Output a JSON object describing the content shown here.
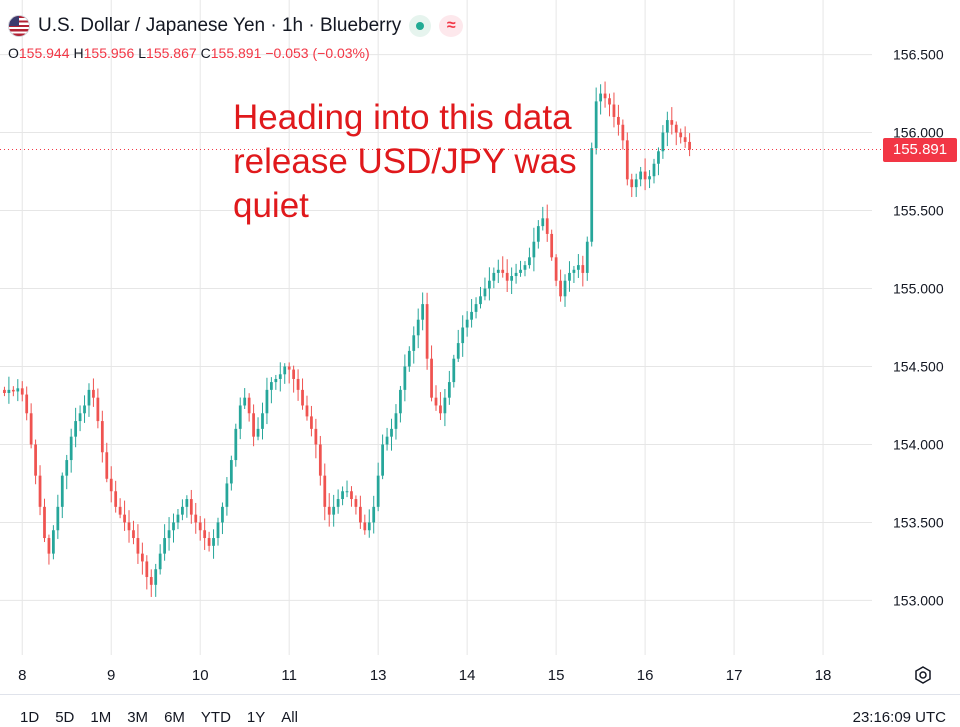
{
  "header": {
    "title": "U.S. Dollar / Japanese Yen · 1h · Blueberry",
    "flag_icon": "us-flag-icon",
    "status_icon": "market-open-dot-icon",
    "wave_icon": "approx-wave-icon"
  },
  "ohlc": {
    "o_label": "O",
    "o_value": "155.944",
    "h_label": "H",
    "h_value": "155.956",
    "l_label": "L",
    "l_value": "155.867",
    "c_label": "C",
    "c_value": "155.891",
    "change": "−0.053 (−0.03%)"
  },
  "annotation": "Heading into this data release USD/JPY was quiet",
  "last_price": "155.891",
  "colors": {
    "up": "#26a69a",
    "down": "#ef5350",
    "annotation": "#e0191c",
    "price_tag": "#f23645",
    "grid": "#e6e6e6"
  },
  "time_ranges": [
    "1D",
    "5D",
    "1M",
    "3M",
    "6M",
    "YTD",
    "1Y",
    "All"
  ],
  "clock": "23:16:09 UTC",
  "settings_icon": "gear-icon",
  "chart_data": {
    "type": "candlestick",
    "title": "U.S. Dollar / Japanese Yen · 1h · Blueberry",
    "xlabel": "",
    "ylabel": "",
    "ylim": [
      152.65,
      156.85
    ],
    "y_ticks": [
      153.0,
      153.5,
      154.0,
      154.5,
      155.0,
      155.5,
      156.0,
      156.5
    ],
    "y_tick_labels": [
      "153.000",
      "153.500",
      "154.000",
      "154.500",
      "155.000",
      "155.500",
      "156.000",
      "156.500"
    ],
    "x_ticks": [
      {
        "label": "8",
        "index": 4
      },
      {
        "label": "9",
        "index": 24
      },
      {
        "label": "10",
        "index": 44
      },
      {
        "label": "11",
        "index": 64
      },
      {
        "label": "13",
        "index": 84
      },
      {
        "label": "14",
        "index": 104
      },
      {
        "label": "15",
        "index": 124
      },
      {
        "label": "16",
        "index": 144
      },
      {
        "label": "17",
        "index": 164
      },
      {
        "label": "18",
        "index": 184
      }
    ],
    "x_range": [
      -1,
      195
    ],
    "last_price": 155.891,
    "grid": true,
    "close": [
      154.33,
      154.35,
      154.34,
      154.36,
      154.32,
      154.2,
      154.0,
      153.8,
      153.6,
      153.4,
      153.3,
      153.45,
      153.6,
      153.8,
      153.9,
      154.05,
      154.15,
      154.2,
      154.25,
      154.35,
      154.3,
      154.15,
      153.95,
      153.78,
      153.7,
      153.6,
      153.55,
      153.5,
      153.45,
      153.4,
      153.3,
      153.25,
      153.15,
      153.1,
      153.2,
      153.3,
      153.4,
      153.45,
      153.5,
      153.55,
      153.6,
      153.65,
      153.55,
      153.5,
      153.45,
      153.4,
      153.35,
      153.4,
      153.5,
      153.6,
      153.75,
      153.9,
      154.1,
      154.25,
      154.3,
      154.2,
      154.05,
      154.1,
      154.2,
      154.35,
      154.4,
      154.42,
      154.45,
      154.5,
      154.48,
      154.42,
      154.35,
      154.25,
      154.18,
      154.1,
      154.0,
      153.8,
      153.6,
      153.55,
      153.6,
      153.65,
      153.7,
      153.7,
      153.65,
      153.6,
      153.5,
      153.45,
      153.5,
      153.6,
      153.8,
      154.0,
      154.05,
      154.1,
      154.2,
      154.35,
      154.5,
      154.6,
      154.7,
      154.8,
      154.9,
      154.55,
      154.3,
      154.25,
      154.2,
      154.3,
      154.4,
      154.55,
      154.65,
      154.75,
      154.8,
      154.85,
      154.9,
      154.95,
      155.0,
      155.05,
      155.1,
      155.12,
      155.1,
      155.05,
      155.08,
      155.1,
      155.12,
      155.15,
      155.2,
      155.3,
      155.4,
      155.45,
      155.35,
      155.2,
      155.05,
      154.95,
      155.05,
      155.1,
      155.12,
      155.15,
      155.1,
      155.3,
      155.9,
      156.2,
      156.25,
      156.22,
      156.18,
      156.1,
      156.05,
      155.95,
      155.7,
      155.65,
      155.7,
      155.75,
      155.7,
      155.72,
      155.8,
      155.88,
      156.0,
      156.08,
      156.05,
      156.0,
      155.97,
      155.94,
      155.891
    ]
  }
}
